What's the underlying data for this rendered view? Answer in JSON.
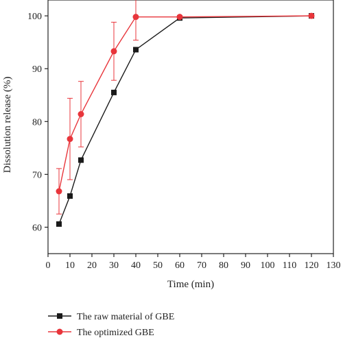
{
  "chart_data": {
    "type": "line",
    "xlabel": "Time (min)",
    "ylabel": "Dissolution release (%)",
    "xlim": [
      0,
      130
    ],
    "ylim": [
      55,
      103
    ],
    "xticks": [
      0,
      10,
      20,
      30,
      40,
      50,
      60,
      70,
      80,
      90,
      100,
      110,
      120,
      130
    ],
    "yticks": [
      60,
      70,
      80,
      90,
      100
    ],
    "grid": false,
    "legend_position": "bottom-left",
    "series": [
      {
        "name": "The raw material of GBE",
        "color": "#1a1a1a",
        "marker": "square",
        "x": [
          5,
          10,
          15,
          30,
          40,
          60,
          120
        ],
        "y": [
          60.6,
          65.9,
          72.7,
          85.5,
          93.6,
          99.6,
          100.0
        ],
        "error": [
          0,
          0,
          0,
          0,
          0,
          0,
          0
        ]
      },
      {
        "name": "The optimized GBE",
        "color": "#e8353b",
        "marker": "circle",
        "x": [
          5,
          10,
          15,
          30,
          40,
          60,
          120
        ],
        "y": [
          66.8,
          76.7,
          81.4,
          93.3,
          99.8,
          99.8,
          100.0
        ],
        "error": [
          4.3,
          7.7,
          6.2,
          5.5,
          4.4,
          0,
          0
        ]
      }
    ]
  }
}
